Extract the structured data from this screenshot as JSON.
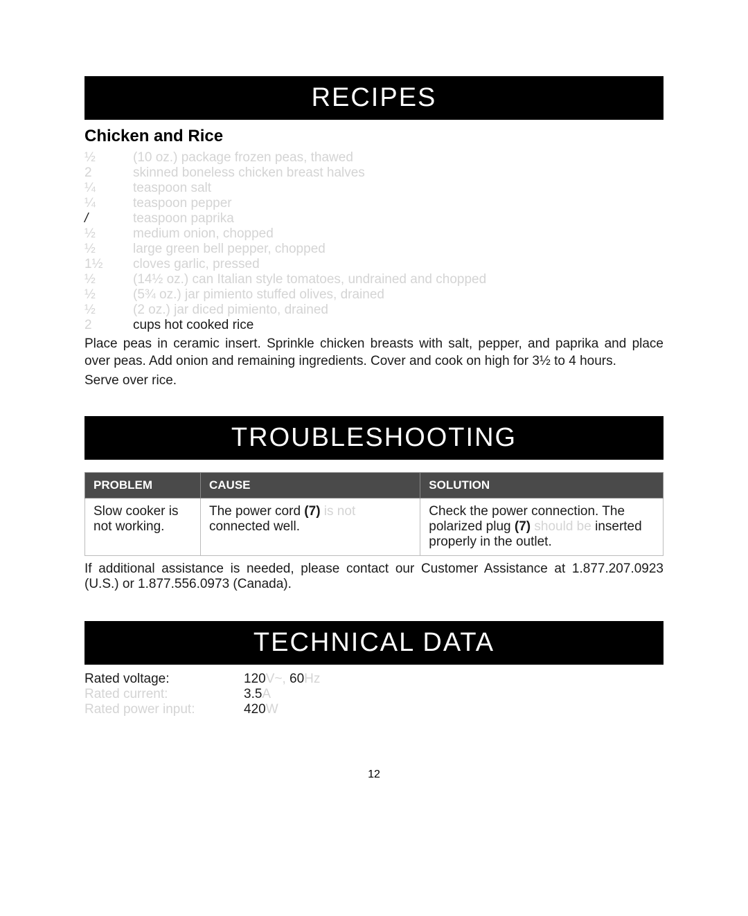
{
  "recipes": {
    "header": "RECIPES",
    "title": "Chicken and Rice",
    "ingredients": [
      {
        "amount": "½",
        "text": "(10 oz.) package frozen peas, thawed",
        "faded": true
      },
      {
        "amount": "2",
        "text": "skinned boneless chicken breast halves",
        "faded": true
      },
      {
        "amount": "¼",
        "text": "teaspoon salt",
        "faded": true
      },
      {
        "amount": "¼",
        "text": "teaspoon pepper",
        "faded": true
      },
      {
        "amount": "/",
        "text": "teaspoon paprika",
        "faded": true,
        "slash": true
      },
      {
        "amount": "½",
        "text": "medium onion, chopped",
        "faded": true
      },
      {
        "amount": "½",
        "text": "large green bell pepper, chopped",
        "faded": true
      },
      {
        "amount": "1½",
        "text": "cloves garlic, pressed",
        "faded": true
      },
      {
        "amount": "½",
        "text": "(14½ oz.) can Italian style tomatoes, undrained and chopped",
        "faded": true
      },
      {
        "amount": "½",
        "text": "(5¾ oz.) jar pimiento stuffed olives, drained",
        "faded": true
      },
      {
        "amount": "½",
        "text": "(2 oz.) jar diced pimiento, drained",
        "faded": true
      },
      {
        "amount": "2",
        "text": "cups hot cooked rice",
        "faded": false
      }
    ],
    "instructions1": "Place peas in ceramic insert. Sprinkle chicken breasts with salt, pepper, and paprika and place over peas. Add onion and remaining ingredients. Cover and cook on high for 3½ to 4 hours.",
    "instructions2": "Serve over rice."
  },
  "troubleshooting": {
    "header": "TROUBLESHOOTING",
    "columns": [
      "PROBLEM",
      "CAUSE",
      "SOLUTION"
    ],
    "row": {
      "problem": "Slow cooker is not working.",
      "cause_pre": "The power cord ",
      "cause_bold": "(7)",
      "cause_faded": " is not ",
      "cause_post": "connected well.",
      "solution_pre": "Check the power connection. The polarized plug ",
      "solution_bold": "(7)",
      "solution_faded": " should be ",
      "solution_post": "inserted properly in the outlet."
    },
    "assist": "If additional assistance is needed, please contact our Customer Assistance at 1.877.207.0923 (U.S.) or 1.877.556.0973 (Canada)."
  },
  "technical": {
    "header": "TECHNICAL DATA",
    "rows": [
      {
        "label": "Rated voltage:",
        "label_faded": false,
        "v1": "120",
        "u1": "V~, ",
        "v2": "60",
        "u2": "Hz"
      },
      {
        "label": "Rated current:",
        "label_faded": true,
        "v1": "3.5",
        "u1": "A",
        "v2": "",
        "u2": ""
      },
      {
        "label": "Rated power input:",
        "label_faded": true,
        "v1": "420",
        "u1": "W",
        "v2": "",
        "u2": ""
      }
    ]
  },
  "page_number": "12"
}
